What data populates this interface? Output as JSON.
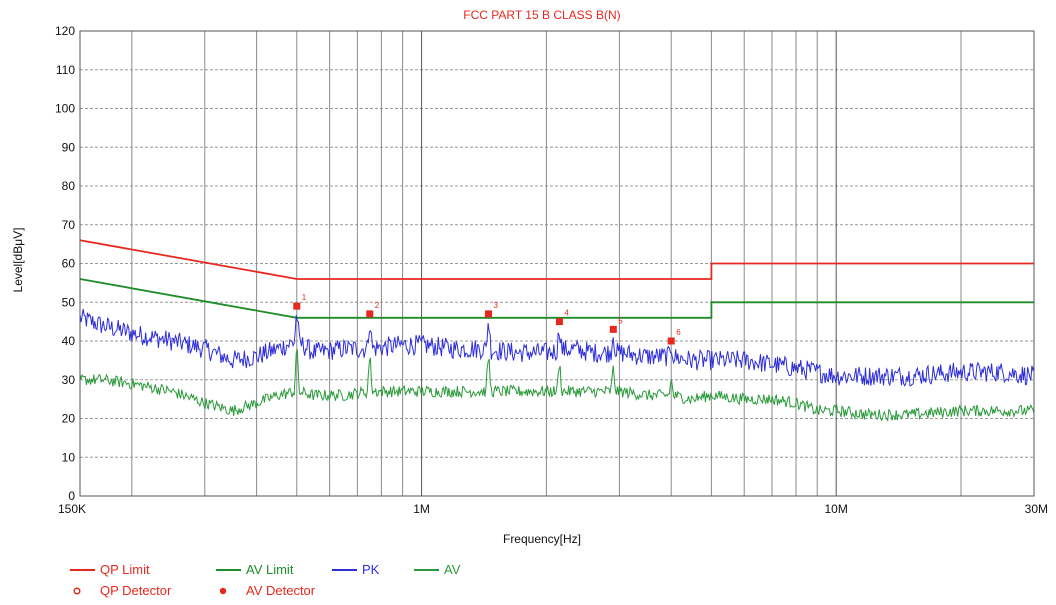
{
  "chart_data": {
    "type": "line",
    "title": "FCC PART 15 B CLASS B(N)",
    "xlabel": "Frequency[Hz]",
    "ylabel": "Level[dBμV]",
    "x_scale": "log",
    "xlim": [
      150000,
      30000000
    ],
    "ylim": [
      0,
      120
    ],
    "grid": true,
    "x_tick_values": [
      150000,
      1000000,
      10000000,
      30000000
    ],
    "x_tick_labels": [
      "150K",
      "1M",
      "10M",
      "30M"
    ],
    "y_ticks": [
      0,
      10,
      20,
      30,
      40,
      50,
      60,
      70,
      80,
      90,
      100,
      110,
      120
    ],
    "legend_placement": "bottom-left",
    "colors": {
      "qp_limit": "#e8281e",
      "av_limit": "#1e8c28",
      "pk": "#2d2ddc",
      "av": "#2a9a3a",
      "marker": "#e8281e",
      "title": "#e8281e"
    },
    "series": [
      {
        "name": "QP Limit",
        "color": "#e8281e",
        "x": [
          150000,
          500000,
          500000,
          5000000,
          5000000,
          30000000
        ],
        "y": [
          66,
          56,
          56,
          56,
          60,
          60
        ]
      },
      {
        "name": "AV Limit",
        "color": "#1e8c28",
        "x": [
          150000,
          500000,
          500000,
          5000000,
          5000000,
          30000000
        ],
        "y": [
          56,
          46,
          46,
          46,
          50,
          50
        ]
      },
      {
        "name": "PK",
        "color": "#2d2ddc",
        "x": [
          150000,
          170000,
          200000,
          250000,
          300000,
          350000,
          400000,
          450000,
          500000,
          550000,
          650000,
          750000,
          900000,
          1000000,
          1200000,
          1400000,
          1700000,
          2000000,
          2300000,
          2600000,
          3000000,
          3500000,
          4000000,
          4500000,
          5000000,
          6000000,
          7000000,
          8000000,
          9000000,
          10000000,
          12000000,
          15000000,
          20000000,
          25000000,
          30000000
        ],
        "y": [
          46,
          44,
          42,
          40,
          38,
          35,
          36,
          38,
          40,
          37,
          38,
          38,
          39,
          39,
          38,
          38,
          37,
          37,
          38,
          37,
          37,
          36,
          36,
          35,
          35,
          35,
          34,
          33,
          32,
          31,
          31,
          31,
          32,
          32,
          31
        ]
      },
      {
        "name": "AV",
        "color": "#2a9a3a",
        "x": [
          150000,
          170000,
          200000,
          250000,
          300000,
          350000,
          400000,
          450000,
          500000,
          550000,
          650000,
          750000,
          900000,
          1000000,
          1200000,
          1400000,
          1700000,
          2000000,
          2300000,
          2600000,
          3000000,
          3500000,
          4000000,
          4500000,
          5000000,
          6000000,
          7000000,
          8000000,
          9000000,
          10000000,
          12000000,
          15000000,
          20000000,
          25000000,
          30000000
        ],
        "y": [
          30,
          30,
          29,
          27,
          24,
          22,
          24,
          26,
          27,
          26,
          26,
          27,
          27,
          27,
          27,
          27,
          27,
          27,
          27,
          27,
          27,
          26,
          26,
          25,
          26,
          25,
          25,
          24,
          22,
          22,
          21,
          21,
          22,
          22,
          22
        ]
      }
    ],
    "markers": [
      {
        "label": "1",
        "x": 500000,
        "y": 49
      },
      {
        "label": "2",
        "x": 750000,
        "y": 47
      },
      {
        "label": "3",
        "x": 1450000,
        "y": 47
      },
      {
        "label": "4",
        "x": 2150000,
        "y": 45
      },
      {
        "label": "5",
        "x": 2900000,
        "y": 43
      },
      {
        "label": "6",
        "x": 4000000,
        "y": 40
      }
    ],
    "legend": [
      {
        "label": "QP Limit",
        "symbol": "line",
        "color": "#e8281e"
      },
      {
        "label": "AV Limit",
        "symbol": "line",
        "color": "#1e8c28"
      },
      {
        "label": "PK",
        "symbol": "line",
        "color": "#2d2ddc"
      },
      {
        "label": "AV",
        "symbol": "line",
        "color": "#2a9a3a"
      },
      {
        "label": "QP Detector",
        "symbol": "circle",
        "color": "#e8281e"
      },
      {
        "label": "AV Detector",
        "symbol": "star",
        "color": "#e8281e"
      }
    ]
  }
}
